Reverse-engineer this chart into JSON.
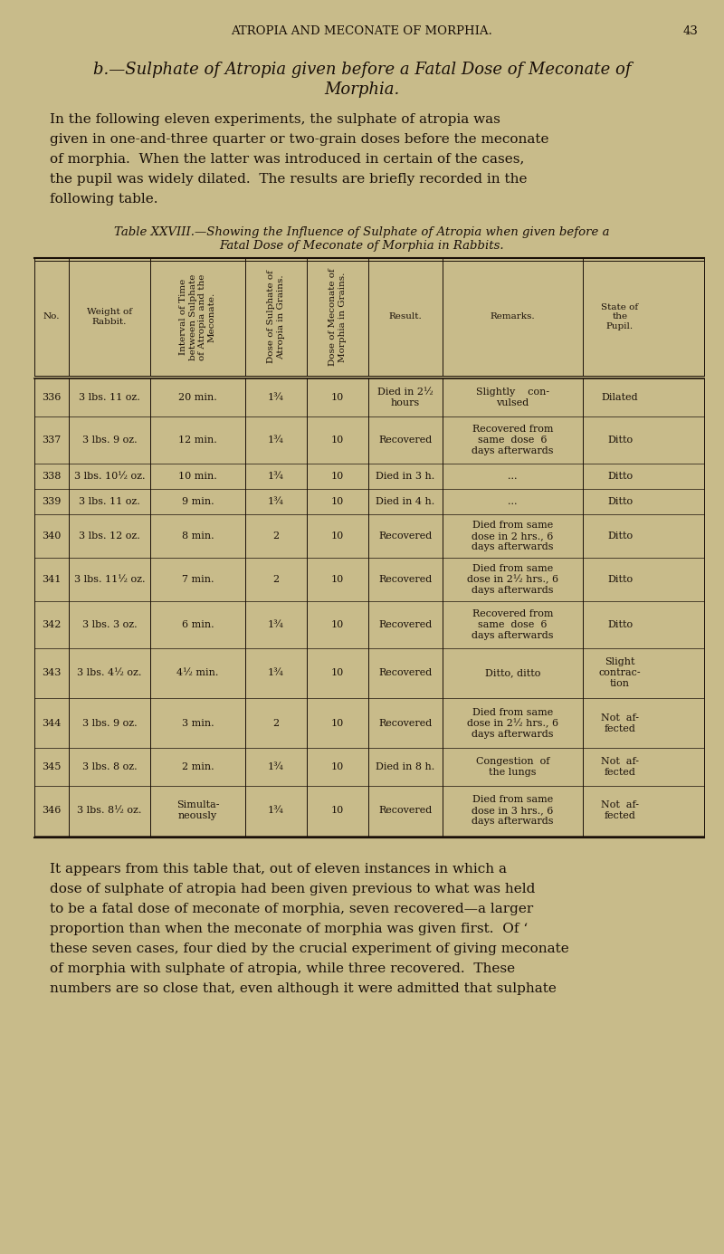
{
  "bg_color": "#c8bb8a",
  "text_color": "#1a1008",
  "page_header": "ATROPIA AND MECONATE OF MORPHIA.",
  "page_number": "43",
  "section_title_line1": "b.—Sulphate of Atropia given before a Fatal Dose of Meconate of",
  "section_title_line2": "Morphia.",
  "intro_text": "In the following eleven experiments, the sulphate of atropia was\ngiven in one-and-three quarter or two-grain doses before the meconate\nof morphia.  When the latter was introduced in certain of the cases,\nthe pupil was widely dilated.  The results are briefly recorded in the\nfollowing table.",
  "table_caption_line1": "Table XXVIII.—Showing the Influence of Sulphate of Atropia when given before a",
  "table_caption_line2": "Fatal Dose of Meconate of Morphia in Rabbits.",
  "col_headers": [
    "No.",
    "Weight of\nRabbit.",
    "Interval of Time\nbetween Sulphate\nof Atropia and the\nMeconate.",
    "Dose of Sulphate of\nAtropia in Grains.",
    "Dose of Meconate of\nMorphia in Grains.",
    "Result.",
    "Remarks.",
    "State of\nthe\nPupil."
  ],
  "rows": [
    [
      "336",
      "3 lbs. 11 oz.",
      "20 min.",
      "1¾",
      "10",
      "Died in 2½\nhours",
      "Slightly    con-\nvulsed",
      "Dilated"
    ],
    [
      "337",
      "3 lbs. 9 oz.",
      "12 min.",
      "1¾",
      "10",
      "Recovered",
      "Recovered from\nsame  dose  6\ndays afterwards",
      "Ditto"
    ],
    [
      "338",
      "3 lbs. 10½ oz.",
      "10 min.",
      "1¾",
      "10",
      "Died in 3 h.",
      "...",
      "Ditto"
    ],
    [
      "339",
      "3 lbs. 11 oz.",
      "9 min.",
      "1¾",
      "10",
      "Died in 4 h.",
      "...",
      "Ditto"
    ],
    [
      "340",
      "3 lbs. 12 oz.",
      "8 min.",
      "2",
      "10",
      "Recovered",
      "Died from same\ndose in 2 hrs., 6\ndays afterwards",
      "Ditto"
    ],
    [
      "341",
      "3 lbs. 11½ oz.",
      "7 min.",
      "2",
      "10",
      "Recovered",
      "Died from same\ndose in 2½ hrs., 6\ndays afterwards",
      "Ditto"
    ],
    [
      "342",
      "3 lbs. 3 oz.",
      "6 min.",
      "1¾",
      "10",
      "Recovered",
      "Recovered from\nsame  dose  6\ndays afterwards",
      "Ditto"
    ],
    [
      "343",
      "3 lbs. 4½ oz.",
      "4½ min.",
      "1¾",
      "10",
      "Recovered",
      "Ditto, ditto",
      "Slight\ncontrac-\ntion"
    ],
    [
      "344",
      "3 lbs. 9 oz.",
      "3 min.",
      "2",
      "10",
      "Recovered",
      "Died from same\ndose in 2½ hrs., 6\ndays afterwards",
      "Not  af-\nfected"
    ],
    [
      "345",
      "3 lbs. 8 oz.",
      "2 min.",
      "1¾",
      "10",
      "Died in 8 h.",
      "Congestion  of\nthe lungs",
      "Not  af-\nfected"
    ],
    [
      "346",
      "3 lbs. 8½ oz.",
      "Simulta-\nneously",
      "1¾",
      "10",
      "Recovered",
      "Died from same\ndose in 3 hrs., 6\ndays afterwards",
      "Not  af-\nfected"
    ]
  ],
  "closing_text": "It appears from this table that, out of eleven instances in which a\ndose of sulphate of atropia had been given previous to what was held\nto be a fatal dose of meconate of morphia, seven recovered—a larger\nproportion than when the meconate of morphia was given first.  Of ‘\nthese seven cases, four died by the crucial experiment of giving meconate\nof morphia with sulphate of atropia, while three recovered.  These\nnumbers are so close that, even although it were admitted that sulphate"
}
